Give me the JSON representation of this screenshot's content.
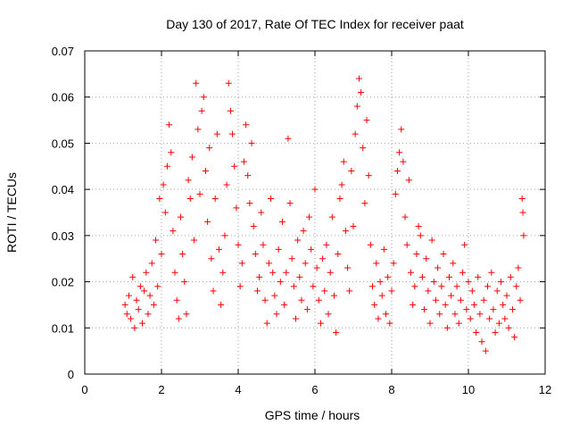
{
  "chart_data": {
    "type": "scatter",
    "title": "Day 130 of 2017, Rate Of TEC Index for receiver paat",
    "xlabel": "GPS time / hours",
    "ylabel": "ROTI / TECUs",
    "xlim": [
      0,
      12
    ],
    "ylim": [
      0,
      0.07
    ],
    "x_ticks": [
      0,
      2,
      4,
      6,
      8,
      10,
      12
    ],
    "x_tick_labels": [
      "0",
      "2",
      "4",
      "6",
      "8",
      "10",
      "12"
    ],
    "y_ticks": [
      0,
      0.01,
      0.02,
      0.03,
      0.04,
      0.05,
      0.06,
      0.07
    ],
    "y_tick_labels": [
      "0",
      "0.01",
      "0.02",
      "0.03",
      "0.04",
      "0.05",
      "0.06",
      "0.07"
    ],
    "grid": true,
    "marker": "+",
    "color": "#ff0000",
    "series": [
      {
        "points": [
          [
            1.05,
            0.015
          ],
          [
            1.1,
            0.013
          ],
          [
            1.15,
            0.017
          ],
          [
            1.2,
            0.012
          ],
          [
            1.25,
            0.021
          ],
          [
            1.3,
            0.01
          ],
          [
            1.35,
            0.016
          ],
          [
            1.4,
            0.014
          ],
          [
            1.45,
            0.019
          ],
          [
            1.5,
            0.011
          ],
          [
            1.55,
            0.018
          ],
          [
            1.6,
            0.022
          ],
          [
            1.65,
            0.013
          ],
          [
            1.7,
            0.017
          ],
          [
            1.75,
            0.024
          ],
          [
            1.8,
            0.015
          ],
          [
            1.85,
            0.029
          ],
          [
            1.9,
            0.019
          ],
          [
            1.95,
            0.038
          ],
          [
            2.0,
            0.026
          ],
          [
            2.05,
            0.041
          ],
          [
            2.1,
            0.035
          ],
          [
            2.15,
            0.045
          ],
          [
            2.2,
            0.054
          ],
          [
            2.25,
            0.048
          ],
          [
            2.3,
            0.031
          ],
          [
            2.35,
            0.022
          ],
          [
            2.4,
            0.016
          ],
          [
            2.45,
            0.012
          ],
          [
            2.5,
            0.034
          ],
          [
            2.55,
            0.026
          ],
          [
            2.6,
            0.02
          ],
          [
            2.65,
            0.013
          ],
          [
            2.7,
            0.042
          ],
          [
            2.75,
            0.038
          ],
          [
            2.8,
            0.047
          ],
          [
            2.85,
            0.029
          ],
          [
            2.9,
            0.063
          ],
          [
            2.95,
            0.053
          ],
          [
            3.0,
            0.039
          ],
          [
            3.05,
            0.057
          ],
          [
            3.1,
            0.06
          ],
          [
            3.15,
            0.044
          ],
          [
            3.2,
            0.033
          ],
          [
            3.25,
            0.049
          ],
          [
            3.3,
            0.025
          ],
          [
            3.35,
            0.018
          ],
          [
            3.4,
            0.038
          ],
          [
            3.45,
            0.052
          ],
          [
            3.5,
            0.027
          ],
          [
            3.55,
            0.015
          ],
          [
            3.6,
            0.022
          ],
          [
            3.65,
            0.03
          ],
          [
            3.7,
            0.041
          ],
          [
            3.75,
            0.063
          ],
          [
            3.8,
            0.057
          ],
          [
            3.85,
            0.052
          ],
          [
            3.9,
            0.045
          ],
          [
            3.95,
            0.036
          ],
          [
            4.0,
            0.028
          ],
          [
            4.05,
            0.019
          ],
          [
            4.1,
            0.024
          ],
          [
            4.15,
            0.046
          ],
          [
            4.2,
            0.054
          ],
          [
            4.25,
            0.043
          ],
          [
            4.3,
            0.037
          ],
          [
            4.35,
            0.05
          ],
          [
            4.4,
            0.032
          ],
          [
            4.45,
            0.026
          ],
          [
            4.5,
            0.018
          ],
          [
            4.55,
            0.021
          ],
          [
            4.6,
            0.035
          ],
          [
            4.65,
            0.028
          ],
          [
            4.7,
            0.016
          ],
          [
            4.75,
            0.011
          ],
          [
            4.8,
            0.024
          ],
          [
            4.85,
            0.038
          ],
          [
            4.9,
            0.022
          ],
          [
            4.95,
            0.017
          ],
          [
            5.0,
            0.013
          ],
          [
            5.05,
            0.027
          ],
          [
            5.1,
            0.02
          ],
          [
            5.15,
            0.033
          ],
          [
            5.2,
            0.015
          ],
          [
            5.25,
            0.022
          ],
          [
            5.3,
            0.051
          ],
          [
            5.35,
            0.037
          ],
          [
            5.4,
            0.025
          ],
          [
            5.45,
            0.019
          ],
          [
            5.5,
            0.012
          ],
          [
            5.55,
            0.029
          ],
          [
            5.6,
            0.021
          ],
          [
            5.65,
            0.016
          ],
          [
            5.7,
            0.031
          ],
          [
            5.75,
            0.024
          ],
          [
            5.8,
            0.014
          ],
          [
            5.85,
            0.034
          ],
          [
            5.9,
            0.027
          ],
          [
            5.95,
            0.019
          ],
          [
            6.0,
            0.04
          ],
          [
            6.05,
            0.023
          ],
          [
            6.1,
            0.016
          ],
          [
            6.15,
            0.011
          ],
          [
            6.2,
            0.025
          ],
          [
            6.25,
            0.018
          ],
          [
            6.3,
            0.028
          ],
          [
            6.35,
            0.013
          ],
          [
            6.4,
            0.022
          ],
          [
            6.45,
            0.034
          ],
          [
            6.5,
            0.017
          ],
          [
            6.55,
            0.009
          ],
          [
            6.6,
            0.026
          ],
          [
            6.65,
            0.038
          ],
          [
            6.7,
            0.041
          ],
          [
            6.75,
            0.046
          ],
          [
            6.8,
            0.031
          ],
          [
            6.85,
            0.023
          ],
          [
            6.9,
            0.018
          ],
          [
            6.95,
            0.044
          ],
          [
            7.0,
            0.032
          ],
          [
            7.05,
            0.052
          ],
          [
            7.1,
            0.058
          ],
          [
            7.15,
            0.064
          ],
          [
            7.2,
            0.061
          ],
          [
            7.25,
            0.049
          ],
          [
            7.3,
            0.037
          ],
          [
            7.35,
            0.055
          ],
          [
            7.4,
            0.043
          ],
          [
            7.45,
            0.028
          ],
          [
            7.5,
            0.019
          ],
          [
            7.55,
            0.015
          ],
          [
            7.6,
            0.024
          ],
          [
            7.65,
            0.012
          ],
          [
            7.7,
            0.02
          ],
          [
            7.75,
            0.017
          ],
          [
            7.8,
            0.027
          ],
          [
            7.85,
            0.013
          ],
          [
            7.9,
            0.021
          ],
          [
            7.95,
            0.011
          ],
          [
            8.0,
            0.018
          ],
          [
            8.05,
            0.024
          ],
          [
            8.1,
            0.039
          ],
          [
            8.15,
            0.044
          ],
          [
            8.2,
            0.048
          ],
          [
            8.25,
            0.053
          ],
          [
            8.3,
            0.046
          ],
          [
            8.35,
            0.034
          ],
          [
            8.4,
            0.028
          ],
          [
            8.45,
            0.042
          ],
          [
            8.5,
            0.022
          ],
          [
            8.55,
            0.015
          ],
          [
            8.6,
            0.019
          ],
          [
            8.65,
            0.026
          ],
          [
            8.7,
            0.032
          ],
          [
            8.75,
            0.03
          ],
          [
            8.8,
            0.021
          ],
          [
            8.85,
            0.014
          ],
          [
            8.9,
            0.025
          ],
          [
            8.95,
            0.018
          ],
          [
            9.0,
            0.011
          ],
          [
            9.05,
            0.029
          ],
          [
            9.1,
            0.02
          ],
          [
            9.15,
            0.016
          ],
          [
            9.2,
            0.023
          ],
          [
            9.25,
            0.013
          ],
          [
            9.3,
            0.019
          ],
          [
            9.35,
            0.026
          ],
          [
            9.4,
            0.015
          ],
          [
            9.45,
            0.01
          ],
          [
            9.5,
            0.021
          ],
          [
            9.55,
            0.017
          ],
          [
            9.6,
            0.024
          ],
          [
            9.65,
            0.013
          ],
          [
            9.7,
            0.019
          ],
          [
            9.75,
            0.011
          ],
          [
            9.8,
            0.016
          ],
          [
            9.85,
            0.022
          ],
          [
            9.9,
            0.028
          ],
          [
            9.95,
            0.014
          ],
          [
            10.0,
            0.02
          ],
          [
            10.05,
            0.012
          ],
          [
            10.1,
            0.018
          ],
          [
            10.15,
            0.015
          ],
          [
            10.2,
            0.009
          ],
          [
            10.25,
            0.021
          ],
          [
            10.3,
            0.013
          ],
          [
            10.35,
            0.007
          ],
          [
            10.4,
            0.016
          ],
          [
            10.45,
            0.005
          ],
          [
            10.5,
            0.019
          ],
          [
            10.55,
            0.012
          ],
          [
            10.6,
            0.022
          ],
          [
            10.65,
            0.014
          ],
          [
            10.7,
            0.009
          ],
          [
            10.75,
            0.018
          ],
          [
            10.8,
            0.011
          ],
          [
            10.85,
            0.02
          ],
          [
            10.9,
            0.015
          ],
          [
            10.95,
            0.012
          ],
          [
            11.0,
            0.017
          ],
          [
            11.05,
            0.01
          ],
          [
            11.1,
            0.021
          ],
          [
            11.15,
            0.014
          ],
          [
            11.2,
            0.008
          ],
          [
            11.25,
            0.019
          ],
          [
            11.3,
            0.023
          ],
          [
            11.35,
            0.016
          ],
          [
            11.4,
            0.038
          ],
          [
            11.42,
            0.035
          ],
          [
            11.44,
            0.03
          ]
        ]
      }
    ]
  }
}
